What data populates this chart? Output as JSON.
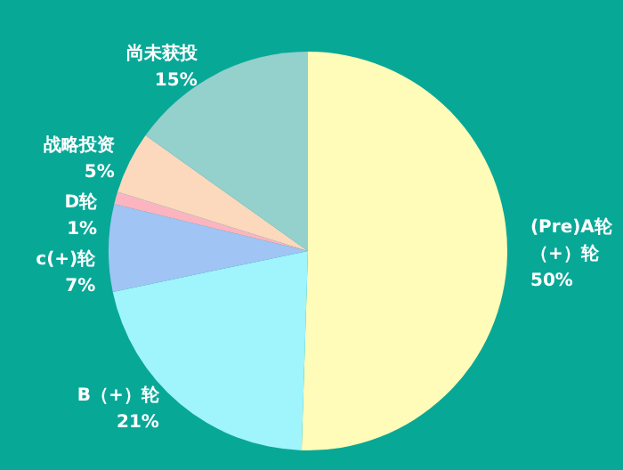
{
  "chart_data": {
    "type": "pie",
    "categories": [
      "(Pre)A轮（+）轮",
      "B（+）轮",
      "c(+)轮",
      "D轮",
      "战略投资",
      "尚未获投"
    ],
    "values": [
      50,
      21,
      7,
      1,
      5,
      15
    ],
    "value_labels": [
      "50%",
      "21%",
      "7%",
      "1%",
      "5%",
      "15%"
    ],
    "colors": [
      "#fffbb8",
      "#a0f4fc",
      "#a0c4f4",
      "#fcb4c0",
      "#fcd8bc",
      "#94d0cc"
    ]
  }
}
